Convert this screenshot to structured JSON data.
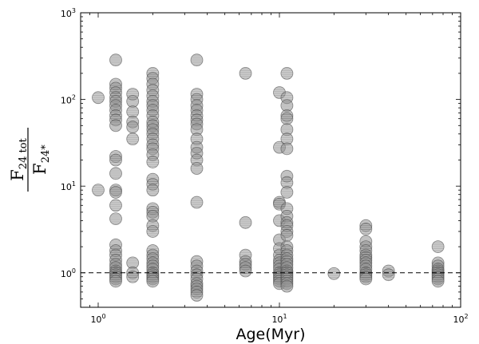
{
  "chart_data": {
    "type": "scatter",
    "title": "",
    "xlabel": "Age(Myr)",
    "ylabel": {
      "numerator_main": "F",
      "numerator_sub": "24 tot",
      "denominator_main": "F",
      "denominator_sub": "24*"
    },
    "xscale": "log",
    "yscale": "log",
    "xlim": [
      0.8,
      100
    ],
    "ylim": [
      0.4,
      1000
    ],
    "x_ticks": [
      {
        "value": 1,
        "base": "10",
        "exp": "0"
      },
      {
        "value": 10,
        "base": "10",
        "exp": "1"
      },
      {
        "value": 100,
        "base": "10",
        "exp": "2"
      }
    ],
    "y_ticks": [
      {
        "value": 1,
        "base": "10",
        "exp": "0"
      },
      {
        "value": 10,
        "base": "10",
        "exp": "1"
      },
      {
        "value": 100,
        "base": "10",
        "exp": "2"
      },
      {
        "value": 1000,
        "base": "10",
        "exp": "3"
      }
    ],
    "reference_line": {
      "y": 1.0,
      "style": "dashed"
    },
    "grid": false,
    "marker_color": "#8a8a8a",
    "series": [
      {
        "points": [
          [
            1.0,
            105
          ],
          [
            1.0,
            9.0
          ],
          [
            1.25,
            285
          ],
          [
            1.25,
            150
          ],
          [
            1.25,
            135
          ],
          [
            1.25,
            120
          ],
          [
            1.25,
            105
          ],
          [
            1.25,
            95
          ],
          [
            1.25,
            85
          ],
          [
            1.25,
            75
          ],
          [
            1.25,
            65
          ],
          [
            1.25,
            58
          ],
          [
            1.25,
            50
          ],
          [
            1.25,
            22
          ],
          [
            1.25,
            20
          ],
          [
            1.25,
            14
          ],
          [
            1.25,
            9.0
          ],
          [
            1.25,
            8.5
          ],
          [
            1.25,
            6.0
          ],
          [
            1.25,
            4.2
          ],
          [
            1.25,
            2.1
          ],
          [
            1.25,
            1.8
          ],
          [
            1.25,
            1.6
          ],
          [
            1.25,
            1.4
          ],
          [
            1.25,
            1.25
          ],
          [
            1.25,
            1.15
          ],
          [
            1.25,
            1.05
          ],
          [
            1.25,
            1.0
          ],
          [
            1.25,
            0.95
          ],
          [
            1.25,
            0.9
          ],
          [
            1.25,
            0.85
          ],
          [
            1.25,
            0.8
          ],
          [
            1.55,
            115
          ],
          [
            1.55,
            95
          ],
          [
            1.55,
            72
          ],
          [
            1.55,
            55
          ],
          [
            1.55,
            48
          ],
          [
            1.55,
            35
          ],
          [
            1.55,
            1.3
          ],
          [
            1.55,
            1.0
          ],
          [
            1.55,
            0.9
          ],
          [
            2.0,
            200
          ],
          [
            2.0,
            175
          ],
          [
            2.0,
            150
          ],
          [
            2.0,
            128
          ],
          [
            2.0,
            110
          ],
          [
            2.0,
            95
          ],
          [
            2.0,
            85
          ],
          [
            2.0,
            75
          ],
          [
            2.0,
            65
          ],
          [
            2.0,
            55
          ],
          [
            2.0,
            50
          ],
          [
            2.0,
            45
          ],
          [
            2.0,
            40
          ],
          [
            2.0,
            35
          ],
          [
            2.0,
            30
          ],
          [
            2.0,
            27
          ],
          [
            2.0,
            23
          ],
          [
            2.0,
            19
          ],
          [
            2.0,
            12
          ],
          [
            2.0,
            10.5
          ],
          [
            2.0,
            9.0
          ],
          [
            2.0,
            5.5
          ],
          [
            2.0,
            5.0
          ],
          [
            2.0,
            4.5
          ],
          [
            2.0,
            3.5
          ],
          [
            2.0,
            3.0
          ],
          [
            2.0,
            1.8
          ],
          [
            2.0,
            1.6
          ],
          [
            2.0,
            1.45
          ],
          [
            2.0,
            1.3
          ],
          [
            2.0,
            1.2
          ],
          [
            2.0,
            1.1
          ],
          [
            2.0,
            1.0
          ],
          [
            2.0,
            0.95
          ],
          [
            2.0,
            0.9
          ],
          [
            2.0,
            0.85
          ],
          [
            2.0,
            0.8
          ],
          [
            3.5,
            285
          ],
          [
            3.5,
            115
          ],
          [
            3.5,
            100
          ],
          [
            3.5,
            85
          ],
          [
            3.5,
            75
          ],
          [
            3.5,
            65
          ],
          [
            3.5,
            58
          ],
          [
            3.5,
            52
          ],
          [
            3.5,
            45
          ],
          [
            3.5,
            35
          ],
          [
            3.5,
            28
          ],
          [
            3.5,
            24
          ],
          [
            3.5,
            20
          ],
          [
            3.5,
            16
          ],
          [
            3.5,
            6.5
          ],
          [
            3.5,
            1.35
          ],
          [
            3.5,
            1.2
          ],
          [
            3.5,
            1.05
          ],
          [
            3.5,
            0.95
          ],
          [
            3.5,
            0.85
          ],
          [
            3.5,
            0.75
          ],
          [
            3.5,
            0.7
          ],
          [
            3.5,
            0.65
          ],
          [
            3.5,
            0.6
          ],
          [
            3.5,
            0.55
          ],
          [
            6.5,
            200
          ],
          [
            6.5,
            3.8
          ],
          [
            6.5,
            1.6
          ],
          [
            6.5,
            1.35
          ],
          [
            6.5,
            1.25
          ],
          [
            6.5,
            1.15
          ],
          [
            6.5,
            1.05
          ],
          [
            10.0,
            120
          ],
          [
            10.0,
            28
          ],
          [
            10.0,
            6.5
          ],
          [
            10.0,
            6.2
          ],
          [
            10.0,
            4.0
          ],
          [
            10.0,
            2.4
          ],
          [
            10.0,
            1.9
          ],
          [
            10.0,
            1.6
          ],
          [
            10.0,
            1.4
          ],
          [
            10.0,
            1.3
          ],
          [
            10.0,
            1.2
          ],
          [
            10.0,
            1.1
          ],
          [
            10.0,
            1.0
          ],
          [
            10.0,
            0.95
          ],
          [
            10.0,
            0.9
          ],
          [
            10.0,
            0.85
          ],
          [
            10.0,
            0.8
          ],
          [
            10.0,
            0.75
          ],
          [
            11.0,
            200
          ],
          [
            11.0,
            105
          ],
          [
            11.0,
            85
          ],
          [
            11.0,
            65
          ],
          [
            11.0,
            60
          ],
          [
            11.0,
            45
          ],
          [
            11.0,
            35
          ],
          [
            11.0,
            27
          ],
          [
            11.0,
            13
          ],
          [
            11.0,
            11
          ],
          [
            11.0,
            8.5
          ],
          [
            11.0,
            5.5
          ],
          [
            11.0,
            4.5
          ],
          [
            11.0,
            3.8
          ],
          [
            11.0,
            3.5
          ],
          [
            11.0,
            3.0
          ],
          [
            11.0,
            2.7
          ],
          [
            11.0,
            2.0
          ],
          [
            11.0,
            1.8
          ],
          [
            11.0,
            1.6
          ],
          [
            11.0,
            1.45
          ],
          [
            11.0,
            1.35
          ],
          [
            11.0,
            1.25
          ],
          [
            11.0,
            1.15
          ],
          [
            11.0,
            1.05
          ],
          [
            11.0,
            1.0
          ],
          [
            11.0,
            0.95
          ],
          [
            11.0,
            0.9
          ],
          [
            11.0,
            0.85
          ],
          [
            11.0,
            0.8
          ],
          [
            11.0,
            0.75
          ],
          [
            11.0,
            0.7
          ],
          [
            20.0,
            0.98
          ],
          [
            30.0,
            3.5
          ],
          [
            30.0,
            3.2
          ],
          [
            30.0,
            2.3
          ],
          [
            30.0,
            2.0
          ],
          [
            30.0,
            1.8
          ],
          [
            30.0,
            1.6
          ],
          [
            30.0,
            1.5
          ],
          [
            30.0,
            1.4
          ],
          [
            30.0,
            1.3
          ],
          [
            30.0,
            1.2
          ],
          [
            30.0,
            1.1
          ],
          [
            30.0,
            1.0
          ],
          [
            30.0,
            0.95
          ],
          [
            30.0,
            0.9
          ],
          [
            30.0,
            0.85
          ],
          [
            40.0,
            1.05
          ],
          [
            40.0,
            0.95
          ],
          [
            75.0,
            2.0
          ],
          [
            75.0,
            1.3
          ],
          [
            75.0,
            1.2
          ],
          [
            75.0,
            1.1
          ],
          [
            75.0,
            1.05
          ],
          [
            75.0,
            1.0
          ],
          [
            75.0,
            0.95
          ],
          [
            75.0,
            0.9
          ],
          [
            75.0,
            0.85
          ],
          [
            75.0,
            0.8
          ]
        ]
      }
    ]
  }
}
